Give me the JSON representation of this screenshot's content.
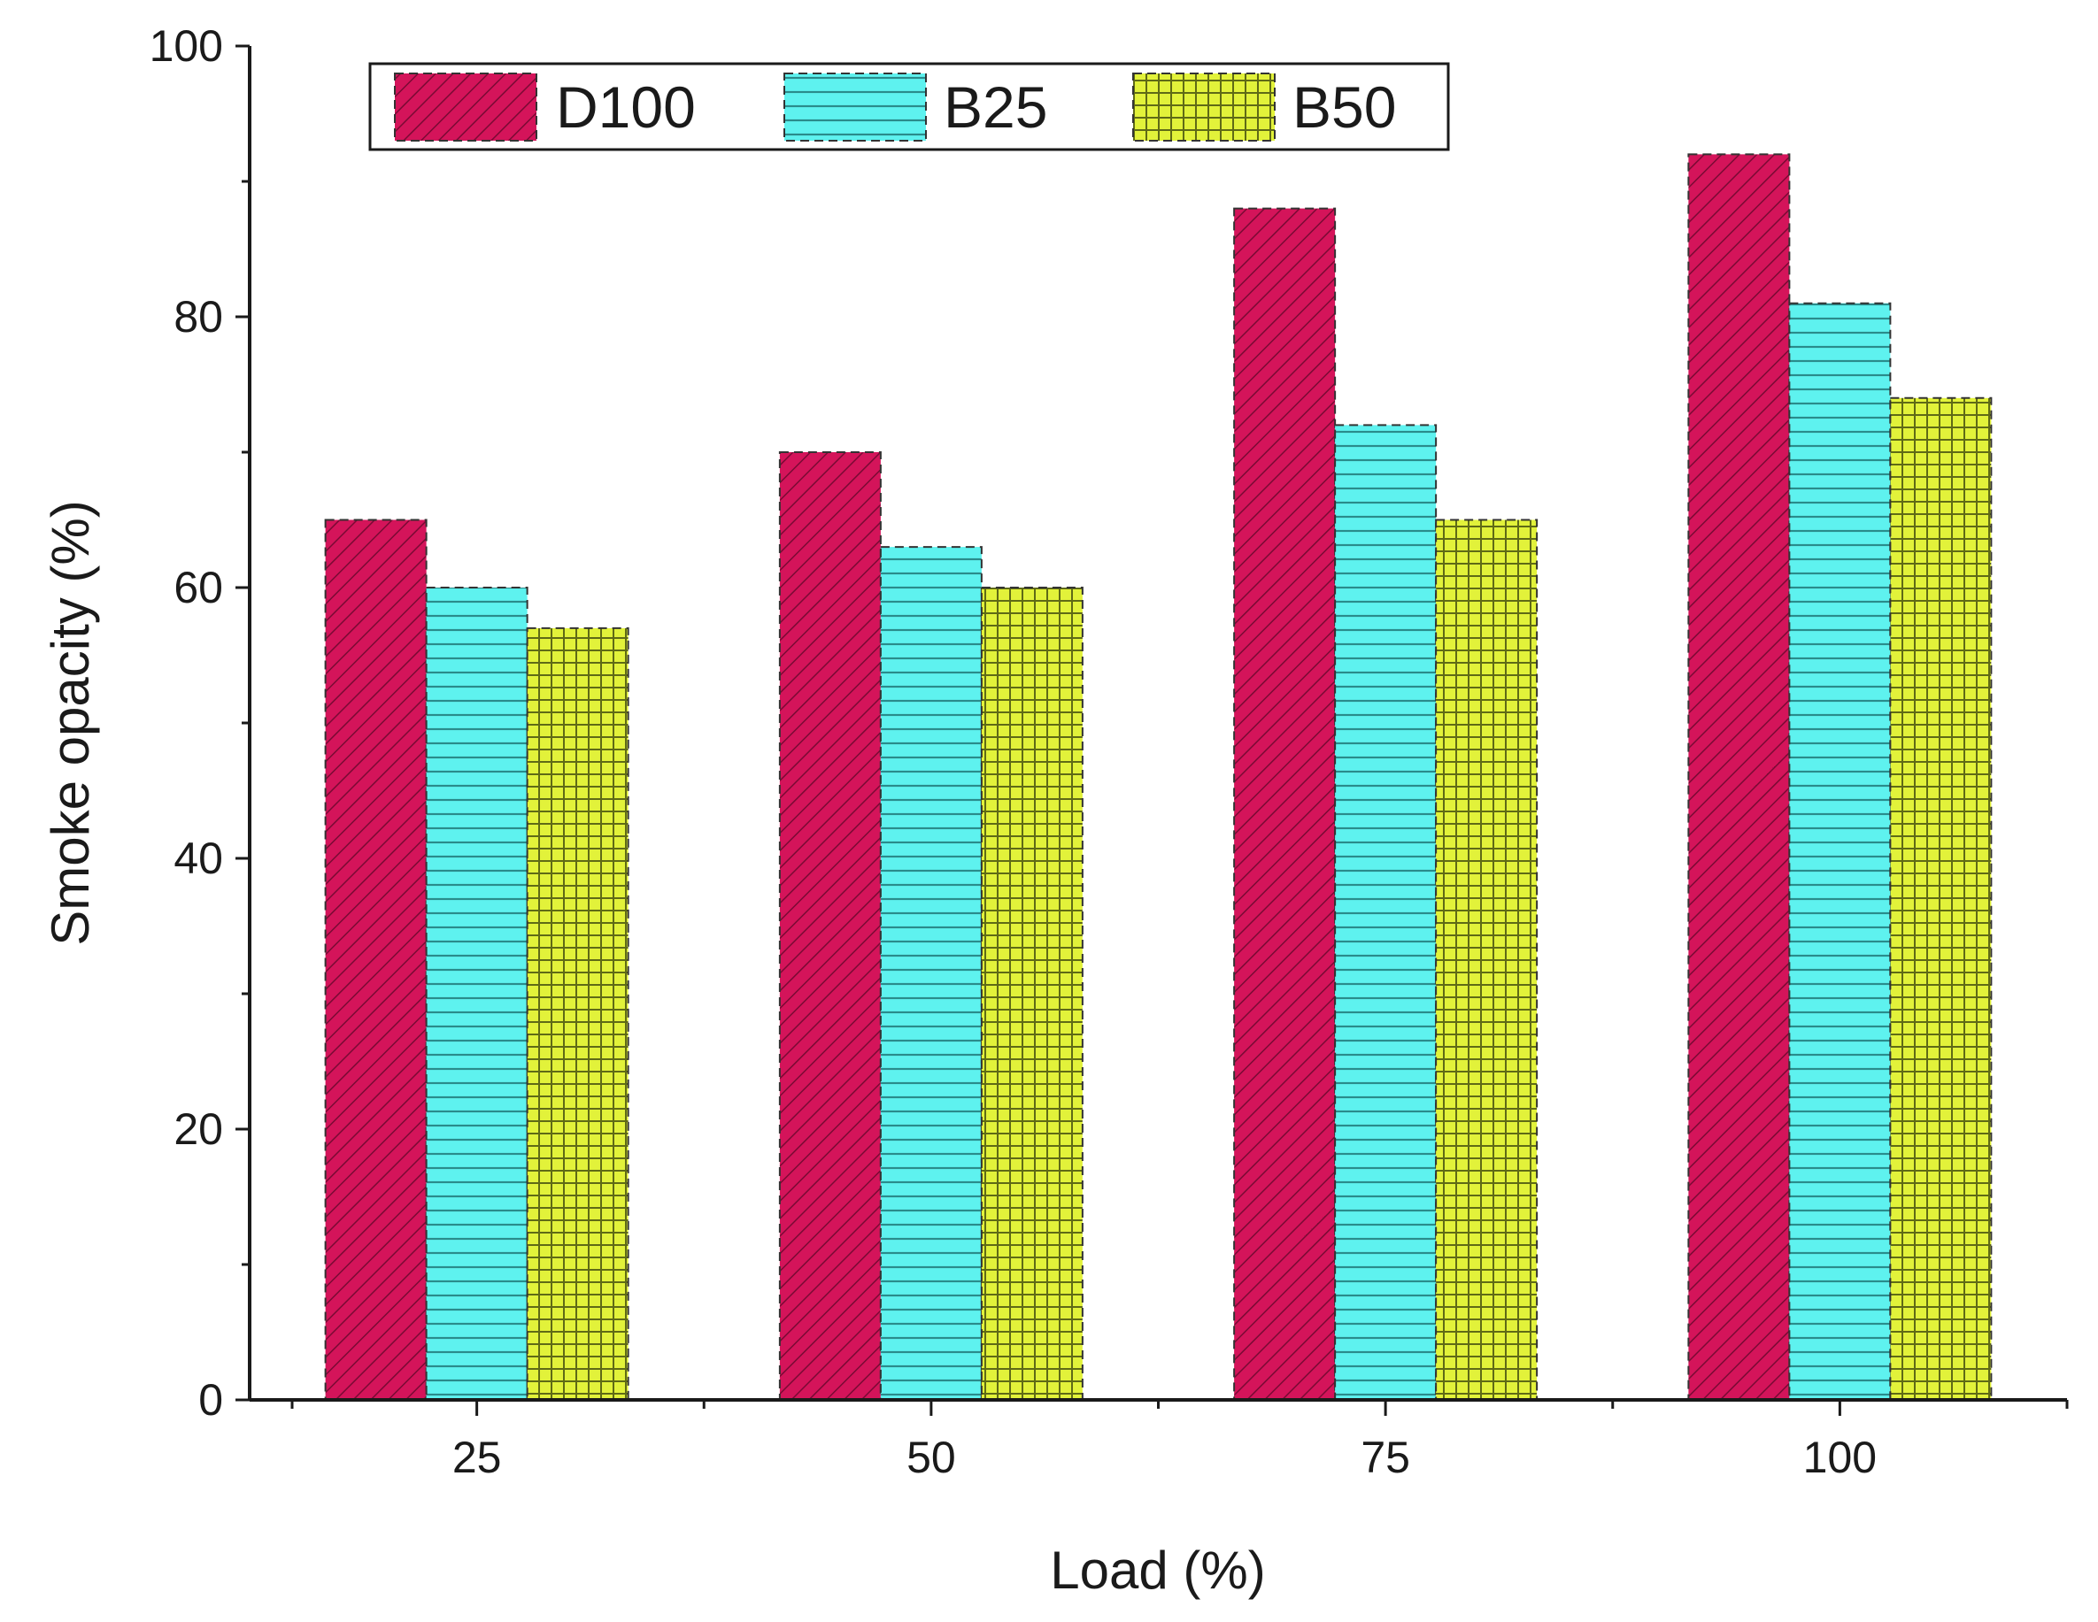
{
  "chart_data": {
    "type": "bar",
    "title": "",
    "xlabel": "Load (%)",
    "ylabel": "Smoke opacity (%)",
    "categories": [
      "25",
      "50",
      "75",
      "100"
    ],
    "ylim": [
      0,
      100
    ],
    "yticks": [
      "0",
      "20",
      "40",
      "60",
      "80",
      "100"
    ],
    "grid": false,
    "legend_position": "top-left",
    "series": [
      {
        "name": "D100",
        "values": [
          65,
          70,
          88,
          92
        ],
        "color": "#d4145a",
        "pattern": "diagonal-hatch"
      },
      {
        "name": "B25",
        "values": [
          60,
          63,
          72,
          81
        ],
        "color": "#5ef2ef",
        "pattern": "horizontal-lines"
      },
      {
        "name": "B50",
        "values": [
          57,
          60,
          65,
          74
        ],
        "color": "#e2f23a",
        "pattern": "grid"
      }
    ]
  }
}
